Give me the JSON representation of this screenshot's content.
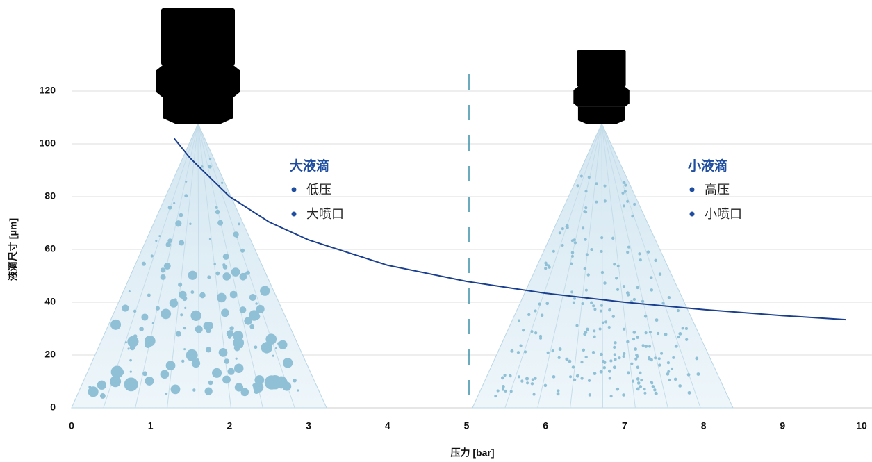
{
  "chart_data": {
    "type": "line",
    "x_label": "压力 [bar]",
    "y_label": "液滴尺寸 [μm]",
    "x": [
      1.3,
      1.5,
      2,
      2.5,
      3,
      4,
      5,
      6,
      7,
      8,
      9,
      9.8
    ],
    "series": [
      {
        "color": "#1a3f8f",
        "values": [
          102,
          94.6,
          80,
          70.4,
          63.6,
          54,
          47.9,
          43.4,
          40,
          37.2,
          34.9,
          33.4
        ]
      }
    ],
    "xlim": [
      0,
      10
    ],
    "xticks": [
      0,
      1,
      2,
      3,
      4,
      5,
      6,
      7,
      8,
      9,
      10
    ],
    "ylim": [
      0,
      150
    ],
    "yticks": [
      0,
      20,
      40,
      60,
      80,
      100,
      120
    ],
    "grid": true,
    "annotations": [
      {
        "title": "大液滴",
        "items": [
          "低压",
          "大喷口"
        ]
      },
      {
        "title": "小液滴",
        "items": [
          "高压",
          "小喷口"
        ]
      }
    ]
  }
}
